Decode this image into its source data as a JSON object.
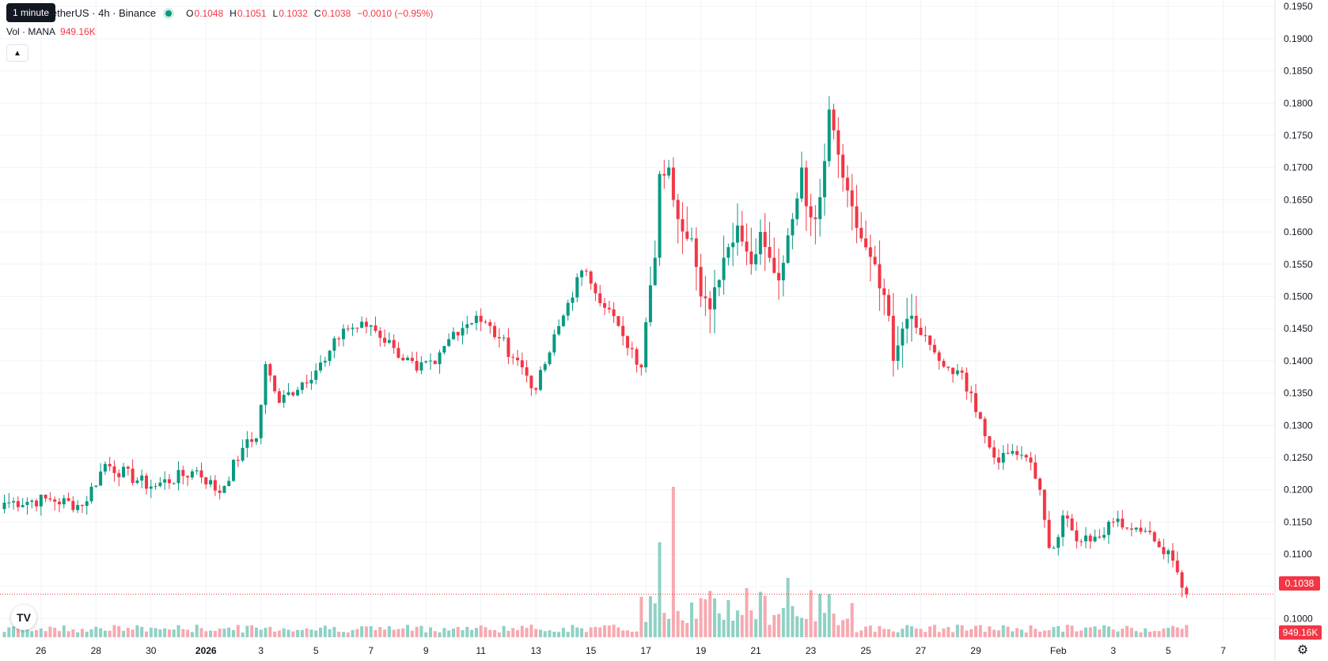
{
  "header": {
    "tooltip": "1 minute",
    "symbol": "traland / TetherUS · 4h · Binance",
    "ohlc": [
      {
        "k": "O",
        "v": "0.1048"
      },
      {
        "k": "H",
        "v": "0.1051"
      },
      {
        "k": "L",
        "v": "0.1032"
      },
      {
        "k": "C",
        "v": "0.1038"
      }
    ],
    "change": "−0.0010 (−0.95%)",
    "volume_label": "Vol · MANA",
    "volume_value": "949.16K",
    "current_price": "0.1038",
    "current_volume": "949.16K"
  },
  "colors": {
    "up": "#089981",
    "down": "#f23645",
    "up_vol": "#8fd1c5",
    "down_vol": "#f7a9b0",
    "grid": "#f0f3fa"
  },
  "icons": {
    "logo": "tradingview-logo-icon",
    "settings": "gear-icon",
    "collapse": "chevron-up-icon"
  },
  "chart_data": {
    "type": "candlestick",
    "interval": "4h",
    "ylim": [
      0.0965,
      0.196
    ],
    "y_ticks": [
      "0.1000",
      "0.1050",
      "0.1100",
      "0.1150",
      "0.1200",
      "0.1250",
      "0.1300",
      "0.1350",
      "0.1400",
      "0.1450",
      "0.1500",
      "0.1550",
      "0.1600",
      "0.1650",
      "0.1700",
      "0.1750",
      "0.1800",
      "0.1850",
      "0.1900",
      "0.1950"
    ],
    "x_ticks": [
      "26",
      "28",
      "30",
      "2026",
      "3",
      "5",
      "7",
      "9",
      "11",
      "13",
      "15",
      "17",
      "19",
      "21",
      "23",
      "25",
      "27",
      "29",
      "Feb",
      "3",
      "5",
      "7"
    ],
    "x_tick_bars": [
      8,
      20,
      32,
      44,
      56,
      68,
      80,
      92,
      104,
      116,
      128,
      140,
      152,
      164,
      176,
      188,
      200,
      212,
      230,
      242,
      254,
      266
    ],
    "close_series_anchors": [
      [
        0,
        0.118
      ],
      [
        10,
        0.1185
      ],
      [
        17,
        0.1175
      ],
      [
        22,
        0.124
      ],
      [
        32,
        0.1205
      ],
      [
        42,
        0.123
      ],
      [
        47,
        0.1195
      ],
      [
        52,
        0.1265
      ],
      [
        55,
        0.128
      ],
      [
        57,
        0.1395
      ],
      [
        60,
        0.1335
      ],
      [
        70,
        0.14
      ],
      [
        74,
        0.145
      ],
      [
        80,
        0.1455
      ],
      [
        85,
        0.142
      ],
      [
        90,
        0.1385
      ],
      [
        94,
        0.1395
      ],
      [
        98,
        0.1445
      ],
      [
        103,
        0.147
      ],
      [
        108,
        0.1435
      ],
      [
        113,
        0.139
      ],
      [
        116,
        0.1355
      ],
      [
        118,
        0.1395
      ],
      [
        123,
        0.149
      ],
      [
        126,
        0.154
      ],
      [
        128,
        0.152
      ],
      [
        132,
        0.148
      ],
      [
        136,
        0.142
      ],
      [
        139,
        0.139
      ],
      [
        140,
        0.146
      ],
      [
        142,
        0.156
      ],
      [
        143,
        0.169
      ],
      [
        145,
        0.17
      ],
      [
        147,
        0.162
      ],
      [
        150,
        0.159
      ],
      [
        152,
        0.15
      ],
      [
        154,
        0.148
      ],
      [
        157,
        0.156
      ],
      [
        160,
        0.161
      ],
      [
        163,
        0.155
      ],
      [
        165,
        0.16
      ],
      [
        167,
        0.156
      ],
      [
        169,
        0.1525
      ],
      [
        172,
        0.162
      ],
      [
        174,
        0.17
      ],
      [
        175,
        0.164
      ],
      [
        177,
        0.162
      ],
      [
        179,
        0.171
      ],
      [
        180,
        0.179
      ],
      [
        182,
        0.172
      ],
      [
        185,
        0.164
      ],
      [
        187,
        0.159
      ],
      [
        190,
        0.155
      ],
      [
        193,
        0.147
      ],
      [
        194,
        0.14
      ],
      [
        196,
        0.145
      ],
      [
        198,
        0.147
      ],
      [
        200,
        0.144
      ],
      [
        204,
        0.14
      ],
      [
        208,
        0.1385
      ],
      [
        211,
        0.135
      ],
      [
        213,
        0.131
      ],
      [
        216,
        0.125
      ],
      [
        220,
        0.126
      ],
      [
        223,
        0.125
      ],
      [
        226,
        0.12
      ],
      [
        228,
        0.111
      ],
      [
        229,
        0.111
      ],
      [
        231,
        0.116
      ],
      [
        234,
        0.112
      ],
      [
        237,
        0.112
      ],
      [
        240,
        0.113
      ],
      [
        242,
        0.115
      ],
      [
        245,
        0.114
      ],
      [
        248,
        0.1135
      ],
      [
        251,
        0.112
      ],
      [
        253,
        0.11
      ],
      [
        255,
        0.109
      ],
      [
        257,
        0.1048
      ],
      [
        258,
        0.1038
      ]
    ],
    "last": {
      "open": 0.1048,
      "high": 0.1051,
      "low": 0.1032,
      "close": 0.1038,
      "volume": "949.16K"
    }
  }
}
